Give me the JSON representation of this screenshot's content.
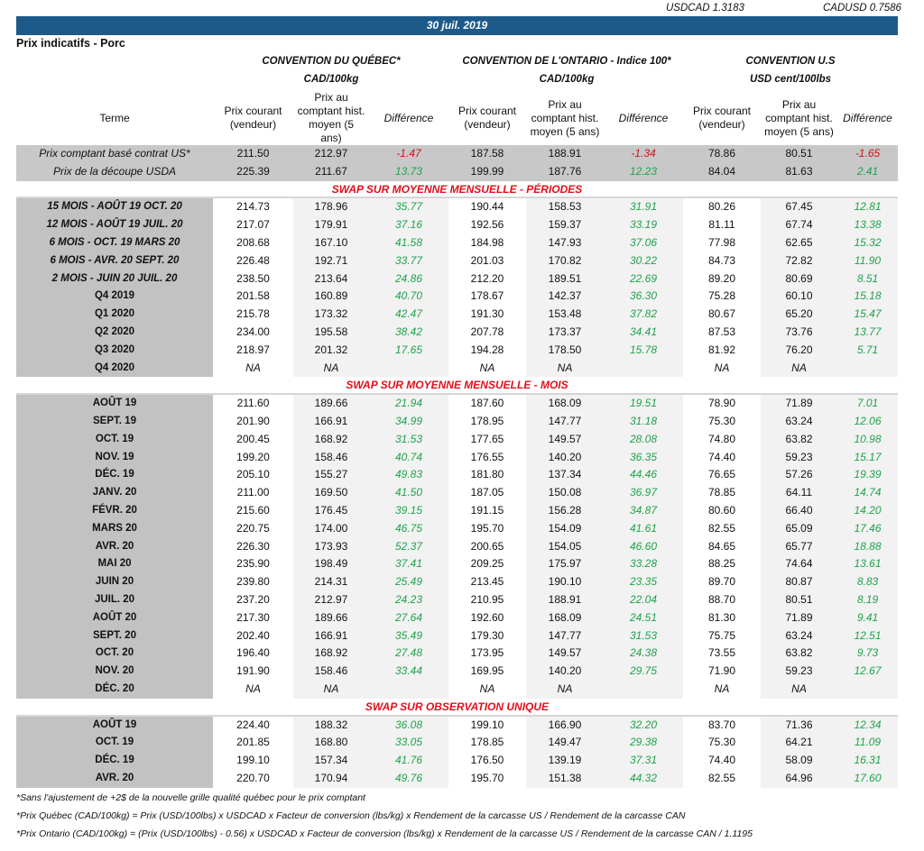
{
  "rates": {
    "usdcad": "USDCAD 1.3183",
    "cadusd": "CADUSD 0.7586"
  },
  "date": "30 juil. 2019",
  "subtitle": "Prix indicatifs - Porc",
  "groups": [
    {
      "title": "CONVENTION DU QUÉBEC*",
      "unit": "CAD/100kg"
    },
    {
      "title": "CONVENTION DE L'ONTARIO - Indice 100*",
      "unit": "CAD/100kg"
    },
    {
      "title": "CONVENTION U.S",
      "unit": "USD cent/100lbs"
    }
  ],
  "columns": {
    "term": "Terme",
    "current": "Prix courant (vendeur)",
    "hist": "Prix au comptant hist. moyen (5 ans)",
    "diff": "Différence"
  },
  "colors": {
    "positive": "#1fa24a",
    "negative": "#d0101b",
    "banner": "#1d5a8a"
  },
  "top_rows": [
    {
      "term": "Prix comptant basé contrat US*",
      "values": [
        "211.50",
        "212.97",
        "-1.47",
        "187.58",
        "188.91",
        "-1.34",
        "78.86",
        "80.51",
        "-1.65"
      ]
    },
    {
      "term": "Prix de la découpe USDA",
      "values": [
        "225.39",
        "211.67",
        "13.73",
        "199.99",
        "187.76",
        "12.23",
        "84.04",
        "81.63",
        "2.41"
      ]
    }
  ],
  "sections": [
    {
      "title": "SWAP SUR MOYENNE MENSUELLE - PÉRIODES",
      "rows": [
        {
          "term": "15 MOIS -  AOÛT 19 OCT. 20",
          "values": [
            "214.73",
            "178.96",
            "35.77",
            "190.44",
            "158.53",
            "31.91",
            "80.26",
            "67.45",
            "12.81"
          ]
        },
        {
          "term": "12 MOIS -  AOÛT 19 JUIL. 20",
          "values": [
            "217.07",
            "179.91",
            "37.16",
            "192.56",
            "159.37",
            "33.19",
            "81.11",
            "67.74",
            "13.38"
          ]
        },
        {
          "term": "6 MOIS -  OCT. 19 MARS 20",
          "values": [
            "208.68",
            "167.10",
            "41.58",
            "184.98",
            "147.93",
            "37.06",
            "77.98",
            "62.65",
            "15.32"
          ]
        },
        {
          "term": "6 MOIS -  AVR. 20 SEPT. 20",
          "values": [
            "226.48",
            "192.71",
            "33.77",
            "201.03",
            "170.82",
            "30.22",
            "84.73",
            "72.82",
            "11.90"
          ]
        },
        {
          "term": "2 MOIS -  JUIN 20  JUIL. 20",
          "values": [
            "238.50",
            "213.64",
            "24.86",
            "212.20",
            "189.51",
            "22.69",
            "89.20",
            "80.69",
            "8.51"
          ]
        },
        {
          "term": "Q4 2019",
          "values": [
            "201.58",
            "160.89",
            "40.70",
            "178.67",
            "142.37",
            "36.30",
            "75.28",
            "60.10",
            "15.18"
          ]
        },
        {
          "term": "Q1 2020",
          "values": [
            "215.78",
            "173.32",
            "42.47",
            "191.30",
            "153.48",
            "37.82",
            "80.67",
            "65.20",
            "15.47"
          ]
        },
        {
          "term": "Q2 2020",
          "values": [
            "234.00",
            "195.58",
            "38.42",
            "207.78",
            "173.37",
            "34.41",
            "87.53",
            "73.76",
            "13.77"
          ]
        },
        {
          "term": "Q3 2020",
          "values": [
            "218.97",
            "201.32",
            "17.65",
            "194.28",
            "178.50",
            "15.78",
            "81.92",
            "76.20",
            "5.71"
          ]
        },
        {
          "term": "Q4 2020",
          "values": [
            "NA",
            "NA",
            "",
            "NA",
            "NA",
            "",
            "NA",
            "NA",
            ""
          ]
        }
      ]
    },
    {
      "title": "SWAP SUR MOYENNE MENSUELLE - MOIS",
      "rows": [
        {
          "term": "AOÛT 19",
          "values": [
            "211.60",
            "189.66",
            "21.94",
            "187.60",
            "168.09",
            "19.51",
            "78.90",
            "71.89",
            "7.01"
          ]
        },
        {
          "term": "SEPT. 19",
          "values": [
            "201.90",
            "166.91",
            "34.99",
            "178.95",
            "147.77",
            "31.18",
            "75.30",
            "63.24",
            "12.06"
          ]
        },
        {
          "term": "OCT. 19",
          "values": [
            "200.45",
            "168.92",
            "31.53",
            "177.65",
            "149.57",
            "28.08",
            "74.80",
            "63.82",
            "10.98"
          ]
        },
        {
          "term": "NOV. 19",
          "values": [
            "199.20",
            "158.46",
            "40.74",
            "176.55",
            "140.20",
            "36.35",
            "74.40",
            "59.23",
            "15.17"
          ]
        },
        {
          "term": "DÉC. 19",
          "values": [
            "205.10",
            "155.27",
            "49.83",
            "181.80",
            "137.34",
            "44.46",
            "76.65",
            "57.26",
            "19.39"
          ]
        },
        {
          "term": "JANV. 20",
          "values": [
            "211.00",
            "169.50",
            "41.50",
            "187.05",
            "150.08",
            "36.97",
            "78.85",
            "64.11",
            "14.74"
          ]
        },
        {
          "term": "FÉVR. 20",
          "values": [
            "215.60",
            "176.45",
            "39.15",
            "191.15",
            "156.28",
            "34.87",
            "80.60",
            "66.40",
            "14.20"
          ]
        },
        {
          "term": "MARS 20",
          "values": [
            "220.75",
            "174.00",
            "46.75",
            "195.70",
            "154.09",
            "41.61",
            "82.55",
            "65.09",
            "17.46"
          ]
        },
        {
          "term": "AVR. 20",
          "values": [
            "226.30",
            "173.93",
            "52.37",
            "200.65",
            "154.05",
            "46.60",
            "84.65",
            "65.77",
            "18.88"
          ]
        },
        {
          "term": "MAI 20",
          "values": [
            "235.90",
            "198.49",
            "37.41",
            "209.25",
            "175.97",
            "33.28",
            "88.25",
            "74.64",
            "13.61"
          ]
        },
        {
          "term": "JUIN 20",
          "values": [
            "239.80",
            "214.31",
            "25.49",
            "213.45",
            "190.10",
            "23.35",
            "89.70",
            "80.87",
            "8.83"
          ]
        },
        {
          "term": "JUIL. 20",
          "values": [
            "237.20",
            "212.97",
            "24.23",
            "210.95",
            "188.91",
            "22.04",
            "88.70",
            "80.51",
            "8.19"
          ]
        },
        {
          "term": "AOÛT 20",
          "values": [
            "217.30",
            "189.66",
            "27.64",
            "192.60",
            "168.09",
            "24.51",
            "81.30",
            "71.89",
            "9.41"
          ]
        },
        {
          "term": "SEPT. 20",
          "values": [
            "202.40",
            "166.91",
            "35.49",
            "179.30",
            "147.77",
            "31.53",
            "75.75",
            "63.24",
            "12.51"
          ]
        },
        {
          "term": "OCT. 20",
          "values": [
            "196.40",
            "168.92",
            "27.48",
            "173.95",
            "149.57",
            "24.38",
            "73.55",
            "63.82",
            "9.73"
          ]
        },
        {
          "term": "NOV. 20",
          "values": [
            "191.90",
            "158.46",
            "33.44",
            "169.95",
            "140.20",
            "29.75",
            "71.90",
            "59.23",
            "12.67"
          ]
        },
        {
          "term": "DÉC. 20",
          "values": [
            "NA",
            "NA",
            "",
            "NA",
            "NA",
            "",
            "NA",
            "NA",
            ""
          ]
        }
      ]
    },
    {
      "title": "SWAP SUR OBSERVATION UNIQUE",
      "rows": [
        {
          "term": "AOÛT 19",
          "values": [
            "224.40",
            "188.32",
            "36.08",
            "199.10",
            "166.90",
            "32.20",
            "83.70",
            "71.36",
            "12.34"
          ]
        },
        {
          "term": "OCT. 19",
          "values": [
            "201.85",
            "168.80",
            "33.05",
            "178.85",
            "149.47",
            "29.38",
            "75.30",
            "64.21",
            "11.09"
          ]
        },
        {
          "term": "DÉC. 19",
          "values": [
            "199.10",
            "157.34",
            "41.76",
            "176.50",
            "139.19",
            "37.31",
            "74.40",
            "58.09",
            "16.31"
          ]
        },
        {
          "term": "AVR. 20",
          "values": [
            "220.70",
            "170.94",
            "49.76",
            "195.70",
            "151.38",
            "44.32",
            "82.55",
            "64.96",
            "17.60"
          ]
        }
      ]
    }
  ],
  "footnotes": [
    "*Sans l'ajustement de +2$ de la nouvelle grille qualité québec pour le prix comptant",
    "*Prix Québec (CAD/100kg) = Prix (USD/100lbs) x USDCAD x Facteur de conversion (lbs/kg) x Rendement de la carcasse US / Rendement de la carcasse CAN",
    "*Prix Ontario (CAD/100kg) = (Prix (USD/100lbs) - 0.56) x USDCAD x Facteur de conversion (lbs/kg) x Rendement de la carcasse US / Rendement de la carcasse CAN / 1.1195"
  ]
}
